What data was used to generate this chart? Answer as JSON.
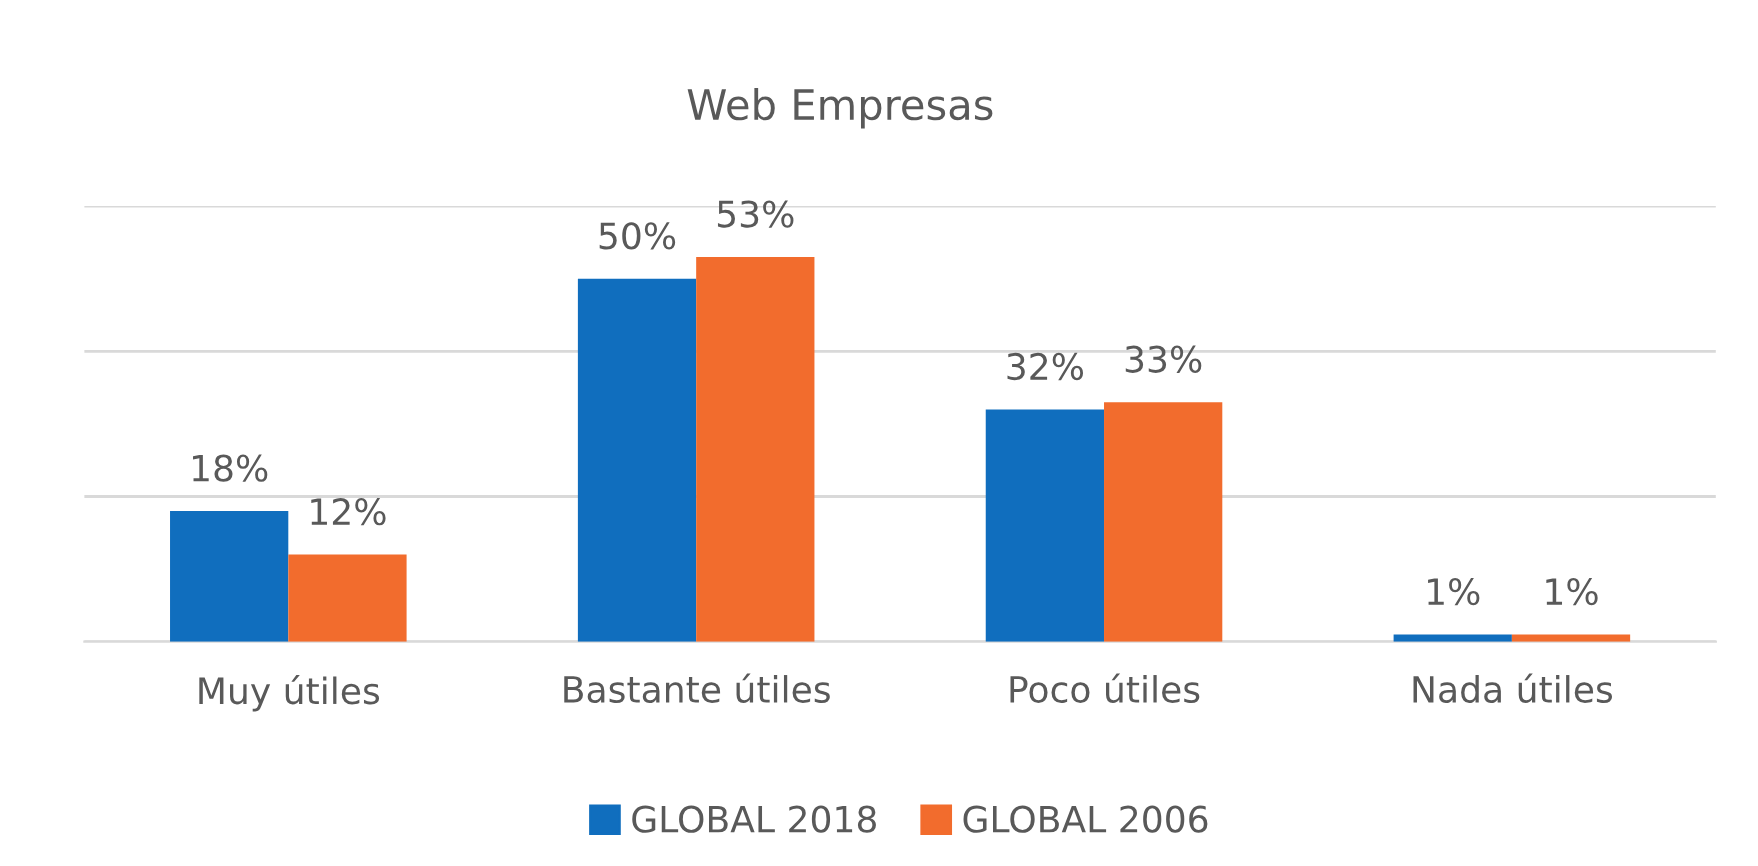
{
  "chart_data": {
    "type": "bar",
    "title": "Web Empresas",
    "categories": [
      "Muy útiles",
      "Bastante útiles",
      "Poco útiles",
      "Nada útiles"
    ],
    "series": [
      {
        "name": "GLOBAL 2018",
        "color": "#106ebe",
        "values": [
          18,
          50,
          32,
          1
        ],
        "value_labels": [
          "18%",
          "50%",
          "32%",
          "1%"
        ]
      },
      {
        "name": "GLOBAL 2006",
        "color": "#f26c2d",
        "values": [
          12,
          53,
          33,
          1
        ],
        "value_labels": [
          "12%",
          "53%",
          "33%",
          "1%"
        ]
      }
    ],
    "ylim": [
      0,
      60
    ],
    "yticks": [
      {
        "value": 0,
        "label": null
      },
      {
        "value": 20,
        "label": null
      },
      {
        "value": 40,
        "label": null
      },
      {
        "value": 60,
        "label": null
      }
    ],
    "tick_labels": "x",
    "grid": "y",
    "legend": "bottom"
  }
}
